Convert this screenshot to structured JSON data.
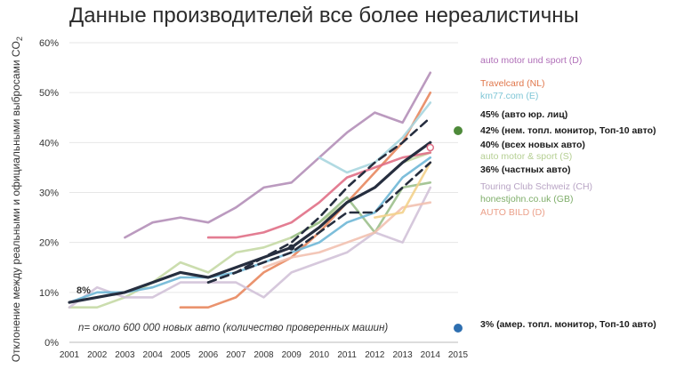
{
  "title": "Данные производителей все более нереалистичны",
  "ylabel_main": "Отклонение между реальными и официальными выбросами CO",
  "ylabel_sub": "2",
  "chart_data": {
    "type": "line",
    "title": "Данные производителей все более нереалистичны",
    "xlabel": "",
    "ylabel": "Отклонение между реальными и официальными выбросами CO2",
    "x_ticks": [
      2001,
      2002,
      2003,
      2004,
      2005,
      2006,
      2007,
      2008,
      2009,
      2010,
      2011,
      2012,
      2013,
      2014,
      2015
    ],
    "y_ticks": [
      "0%",
      "10%",
      "20%",
      "30%",
      "40%",
      "50%",
      "60%"
    ],
    "xlim": [
      2001,
      2015
    ],
    "ylim": [
      0,
      60
    ],
    "grid": true,
    "annotation_start": "8%",
    "note": "n= около 600 000 новых авто (количество проверенных машин)",
    "series": [
      {
        "name": "auto motor und sport (D)",
        "color": "#b48fb8",
        "style": "solid",
        "x": [
          2003,
          2004,
          2005,
          2006,
          2007,
          2008,
          2009,
          2010,
          2011,
          2012,
          2013,
          2014
        ],
        "y": [
          21,
          24,
          25,
          24,
          27,
          31,
          32,
          37,
          42,
          46,
          44,
          54
        ]
      },
      {
        "name": "Travelcard (NL)",
        "color": "#e8875e",
        "style": "solid",
        "x": [
          2005,
          2006,
          2007,
          2008,
          2009,
          2010,
          2011,
          2012,
          2013,
          2014
        ],
        "y": [
          7,
          7,
          9,
          14,
          17,
          22,
          28,
          34,
          40,
          50
        ]
      },
      {
        "name": "km77.com (E)",
        "color": "#a9d6df",
        "style": "solid",
        "x": [
          2010,
          2011,
          2012,
          2013,
          2014
        ],
        "y": [
          37,
          34,
          36,
          41,
          48
        ]
      },
      {
        "name": "45% (авто юр. лиц)",
        "color": "#262e3f",
        "style": "dashed",
        "x": [
          2006,
          2007,
          2008,
          2009,
          2010,
          2011,
          2012,
          2013,
          2014
        ],
        "y": [
          12,
          14,
          17,
          20,
          25,
          31,
          36,
          40,
          45
        ]
      },
      {
        "name": "42% (нем. топл. монитор, Топ-10 авто)",
        "color": "#4e8a3a",
        "style": "marker",
        "x": [],
        "y": []
      },
      {
        "name": "40% (всех новых авто)",
        "color": "#262e3f",
        "style": "bold",
        "x": [
          2001,
          2002,
          2003,
          2004,
          2005,
          2006,
          2007,
          2008,
          2009,
          2010,
          2011,
          2012,
          2013,
          2014
        ],
        "y": [
          8,
          9,
          10,
          12,
          14,
          13,
          15,
          17,
          19,
          23,
          28,
          31,
          36,
          40
        ]
      },
      {
        "name": "auto motor & sport (S)",
        "color": "#c5d9a5",
        "style": "solid",
        "x": [
          2001,
          2002,
          2003,
          2004,
          2005,
          2006,
          2007,
          2008,
          2009,
          2010,
          2011,
          2012,
          2013,
          2014
        ],
        "y": [
          7,
          7,
          9,
          12,
          16,
          14,
          18,
          19,
          21,
          24,
          28,
          31,
          36,
          38
        ]
      },
      {
        "name": "36% (частных авто)",
        "color": "#262e3f",
        "style": "dashed",
        "x": [
          2006,
          2007,
          2008,
          2009,
          2010,
          2011,
          2012,
          2013,
          2014
        ],
        "y": [
          12,
          14,
          16,
          18,
          22,
          26,
          26,
          31,
          36
        ]
      },
      {
        "name": "Touring Club Schweiz (CH)",
        "color": "#d2c2d8",
        "style": "solid",
        "x": [
          2001,
          2002,
          2003,
          2004,
          2005,
          2006,
          2007,
          2008,
          2009,
          2010,
          2011,
          2012,
          2013,
          2014
        ],
        "y": [
          7,
          11,
          9,
          9,
          12,
          12,
          12,
          9,
          14,
          16,
          18,
          22,
          20,
          31
        ]
      },
      {
        "name": "honestjohn.co.uk (GB)",
        "color": "#9cc08c",
        "style": "solid",
        "x": [
          2009,
          2010,
          2011,
          2012,
          2013,
          2014
        ],
        "y": [
          21,
          24,
          29,
          22,
          31,
          32
        ]
      },
      {
        "name": "AUTO BILD (D)",
        "color": "#f2c1b0",
        "style": "solid",
        "x": [
          2008,
          2009,
          2010,
          2011,
          2012,
          2013,
          2014
        ],
        "y": [
          15,
          17,
          18,
          20,
          22,
          27,
          28
        ]
      },
      {
        "name": "",
        "color": "#e06f86",
        "style": "solid",
        "x": [
          2006,
          2007,
          2008,
          2009,
          2010,
          2011,
          2012,
          2013,
          2014
        ],
        "y": [
          21,
          21,
          22,
          24,
          28,
          33,
          35,
          37,
          38
        ]
      },
      {
        "name": "",
        "color": "#6fb7d6",
        "style": "solid",
        "x": [
          2001,
          2002,
          2003,
          2004,
          2005,
          2006,
          2007,
          2008,
          2009,
          2010,
          2011,
          2012,
          2013,
          2014
        ],
        "y": [
          8,
          10,
          10,
          11,
          13,
          13,
          14,
          16,
          18,
          20,
          24,
          26,
          33,
          37
        ]
      },
      {
        "name": "",
        "color": "#f3d28c",
        "style": "solid",
        "x": [
          2012,
          2013,
          2014
        ],
        "y": [
          25,
          26,
          36
        ]
      },
      {
        "name": "3% (амер. топл. монитор, Топ-10 авто)",
        "color": "#2e6fb0",
        "style": "marker",
        "x": [],
        "y": []
      }
    ],
    "markers": [
      {
        "name": "42% (нем. топл. монитор, Топ-10 авто)",
        "value": 42,
        "color": "#4e8a3a"
      },
      {
        "name": "3% (амер. топл. монитор, Топ-10 авто)",
        "value": 3,
        "color": "#2e6fb0"
      }
    ],
    "open_marker": {
      "x": 2014,
      "y": 39,
      "color": "#e06f86"
    }
  },
  "legend": [
    {
      "label": "auto motor und sport (D)",
      "color": "#b06fb8",
      "bold": false
    },
    {
      "label": "Travelcard (NL)",
      "color": "#e0764a",
      "bold": false
    },
    {
      "label": "km77.com (E)",
      "color": "#7fc6d6",
      "bold": false
    },
    {
      "label": "45% (авто юр. лиц)",
      "color": "#1a1a1a",
      "bold": true
    },
    {
      "label": "42% (нем. топл. монитор, Топ-10 авто)",
      "color": "#1a1a1a",
      "bold": true
    },
    {
      "label": "40% (всех новых авто)",
      "color": "#1a1a1a",
      "bold": true
    },
    {
      "label": "auto motor & sport (S)",
      "color": "#b5cf93",
      "bold": false
    },
    {
      "label": "36% (частных авто)",
      "color": "#1a1a1a",
      "bold": true
    },
    {
      "label": "Touring Club Schweiz (CH)",
      "color": "#b9a5c5",
      "bold": false
    },
    {
      "label": "honestjohn.co.uk (GB)",
      "color": "#7fae6a",
      "bold": false
    },
    {
      "label": "AUTO BILD (D)",
      "color": "#eba08a",
      "bold": false
    },
    {
      "label": "3% (амер. топл. монитор, Топ-10 авто)",
      "color": "#1a1a1a",
      "bold": true
    }
  ]
}
